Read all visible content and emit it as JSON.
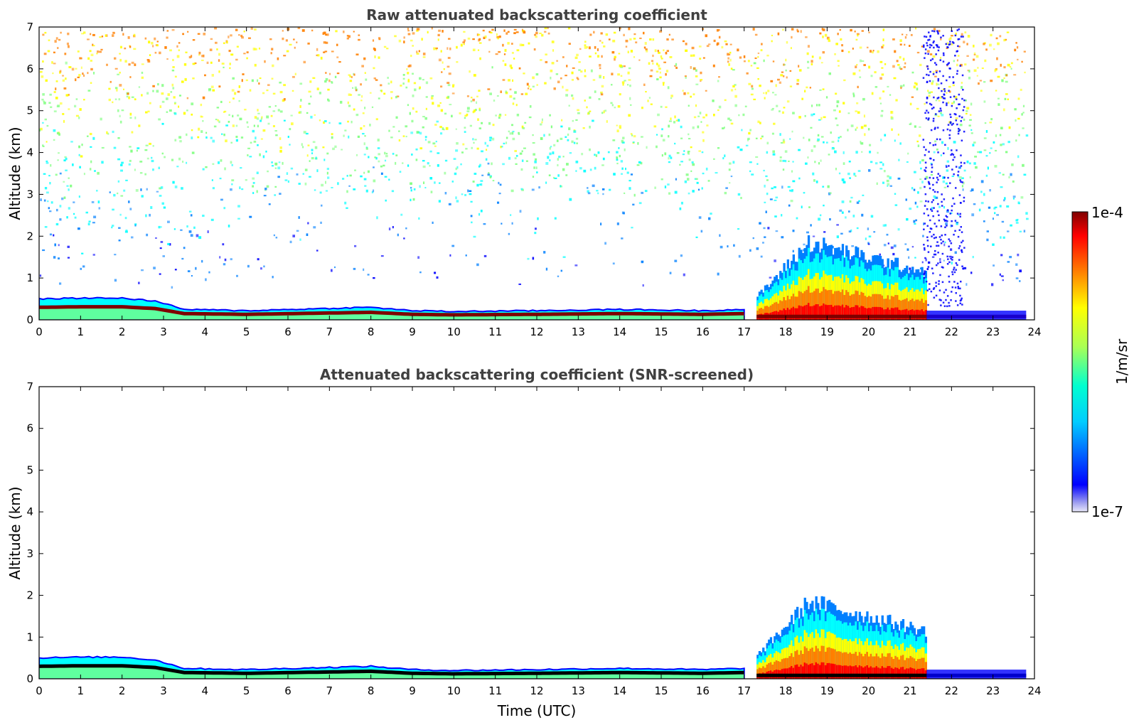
{
  "colors": {
    "jet": [
      "#00007f",
      "#0000ff",
      "#007fff",
      "#00ffff",
      "#7fff7f",
      "#ffff00",
      "#ff7f00",
      "#ff0000",
      "#7f0000"
    ],
    "pale_blue": "#c8c8f0",
    "title": "#404040"
  },
  "chart_data": [
    {
      "type": "heatmap",
      "title": "Raw attenuated backscattering coefficient",
      "ylabel": "Altitude (km)",
      "xlabel": "",
      "xlim": [
        0,
        24
      ],
      "ylim": [
        0,
        7
      ],
      "x_ticks": [
        0,
        1,
        2,
        3,
        4,
        5,
        6,
        7,
        8,
        9,
        10,
        11,
        12,
        13,
        14,
        15,
        16,
        17,
        18,
        19,
        20,
        21,
        22,
        23,
        24
      ],
      "y_ticks": [
        0,
        1,
        2,
        3,
        4,
        5,
        6,
        7
      ],
      "noise_background": true,
      "features": [
        {
          "kind": "boundary_layer",
          "t": [
            0,
            1,
            2,
            2.8,
            3.5,
            5,
            8,
            9,
            10,
            12,
            14,
            16,
            17
          ],
          "top_km": [
            0.5,
            0.52,
            0.52,
            0.45,
            0.25,
            0.22,
            0.3,
            0.22,
            0.2,
            0.22,
            0.25,
            0.22,
            0.25
          ]
        },
        {
          "kind": "cloud_mass",
          "t_start": 17.3,
          "t_end": 21.4,
          "max_top_km": 1.9
        },
        {
          "kind": "noise_column",
          "t_start": 21.3,
          "t_end": 22.3
        }
      ]
    },
    {
      "type": "heatmap",
      "title": "Attenuated backscattering coefficient (SNR-screened)",
      "ylabel": "Altitude (km)",
      "xlabel": "Time (UTC)",
      "xlim": [
        0,
        24
      ],
      "ylim": [
        0,
        7
      ],
      "x_ticks": [
        0,
        1,
        2,
        3,
        4,
        5,
        6,
        7,
        8,
        9,
        10,
        11,
        12,
        13,
        14,
        15,
        16,
        17,
        18,
        19,
        20,
        21,
        22,
        23,
        24
      ],
      "y_ticks": [
        0,
        1,
        2,
        3,
        4,
        5,
        6,
        7
      ],
      "noise_background": false,
      "features": [
        {
          "kind": "boundary_layer",
          "t": [
            0,
            1,
            2,
            2.8,
            3.5,
            5,
            8,
            9,
            10,
            12,
            14,
            16,
            17
          ],
          "top_km": [
            0.5,
            0.52,
            0.52,
            0.45,
            0.25,
            0.22,
            0.3,
            0.22,
            0.2,
            0.22,
            0.25,
            0.22,
            0.25
          ]
        },
        {
          "kind": "cloud_mass",
          "t_start": 17.3,
          "t_end": 21.4,
          "max_top_km": 1.9
        }
      ]
    }
  ],
  "colorbar": {
    "label": "1/m/sr",
    "max_label": "1e-4",
    "min_label": "1e-7",
    "scale": "log",
    "range": [
      1e-07,
      0.0001
    ]
  }
}
